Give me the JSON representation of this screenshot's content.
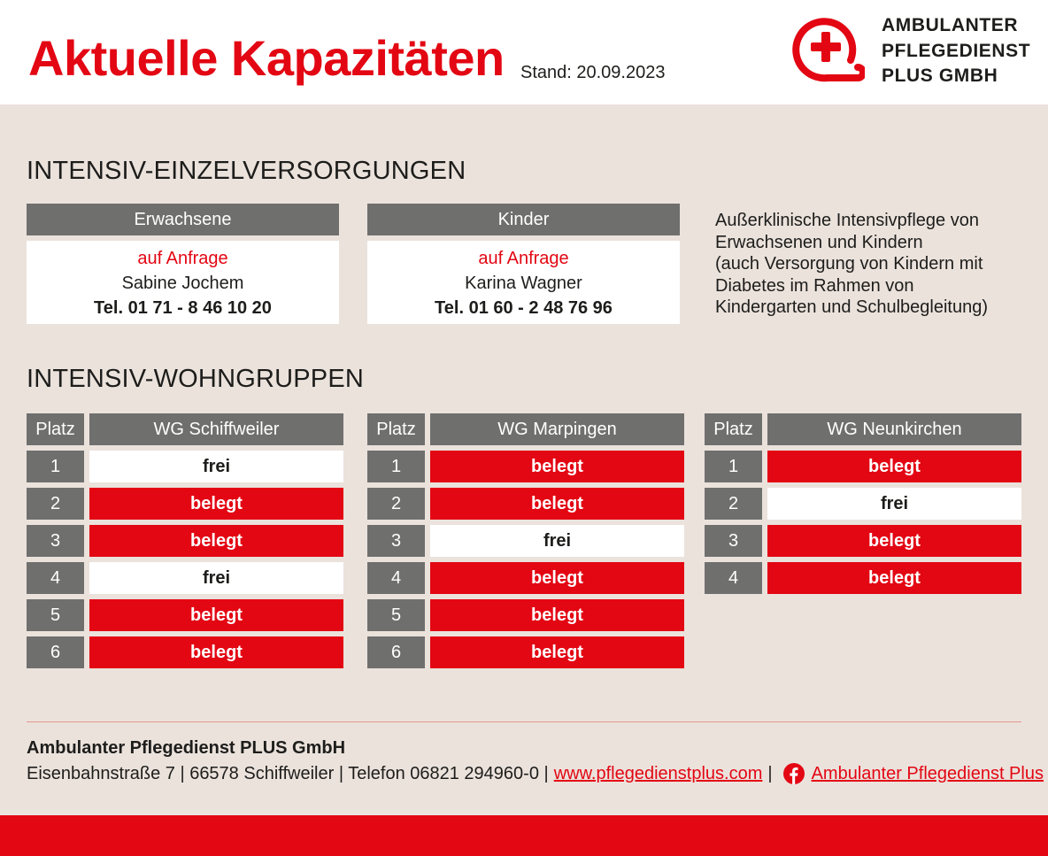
{
  "header": {
    "title": "Aktuelle Kapazitäten",
    "stand": "Stand: 20.09.2023",
    "logo_lines": [
      "AMBULANTER",
      "PFLEGEDIENST",
      "PLUS GMBH"
    ],
    "logo_icon": "cross-circle-icon"
  },
  "einzel": {
    "section_title": "INTENSIV-EINZELVERSORGUNGEN",
    "cards": [
      {
        "head": "Erwachsene",
        "availability": "auf Anfrage",
        "person": "Sabine Jochem",
        "phone": "Tel. 01 71 - 8 46 10 20"
      },
      {
        "head": "Kinder",
        "availability": "auf Anfrage",
        "person": "Karina Wagner",
        "phone": "Tel. 01 60 - 2 48 76 96"
      }
    ],
    "note_lines": [
      "Außerklinische Intensivpflege von",
      "Erwachsenen und Kindern",
      "(auch Versorgung von Kindern mit",
      "Diabetes im Rahmen von",
      "Kindergarten und Schulbegleitung)"
    ]
  },
  "wohngruppen": {
    "section_title": "INTENSIV-WOHNGRUPPEN",
    "platz_label": "Platz",
    "groups": [
      {
        "name": "WG Schiffweiler",
        "places": [
          {
            "nr": "1",
            "status": "frei"
          },
          {
            "nr": "2",
            "status": "belegt"
          },
          {
            "nr": "3",
            "status": "belegt"
          },
          {
            "nr": "4",
            "status": "frei"
          },
          {
            "nr": "5",
            "status": "belegt"
          },
          {
            "nr": "6",
            "status": "belegt"
          }
        ]
      },
      {
        "name": "WG Marpingen",
        "places": [
          {
            "nr": "1",
            "status": "belegt"
          },
          {
            "nr": "2",
            "status": "belegt"
          },
          {
            "nr": "3",
            "status": "frei"
          },
          {
            "nr": "4",
            "status": "belegt"
          },
          {
            "nr": "5",
            "status": "belegt"
          },
          {
            "nr": "6",
            "status": "belegt"
          }
        ]
      },
      {
        "name": "WG Neunkirchen",
        "places": [
          {
            "nr": "1",
            "status": "belegt"
          },
          {
            "nr": "2",
            "status": "frei"
          },
          {
            "nr": "3",
            "status": "belegt"
          },
          {
            "nr": "4",
            "status": "belegt"
          }
        ]
      }
    ]
  },
  "footer": {
    "company": "Ambulanter Pflegedienst PLUS GmbH",
    "address": "Eisenbahnstraße 7 | 66578 Schiffweiler | Telefon 06821 294960-0 |",
    "website": "www.pflegedienstplus.com",
    "separator": "|",
    "facebook_icon": "facebook-icon",
    "facebook_label": "Ambulanter Pflegedienst Plus"
  },
  "colors": {
    "brand_red": "#e30613",
    "header_gray": "#6f6f6e",
    "background": "#ebe2dc"
  }
}
